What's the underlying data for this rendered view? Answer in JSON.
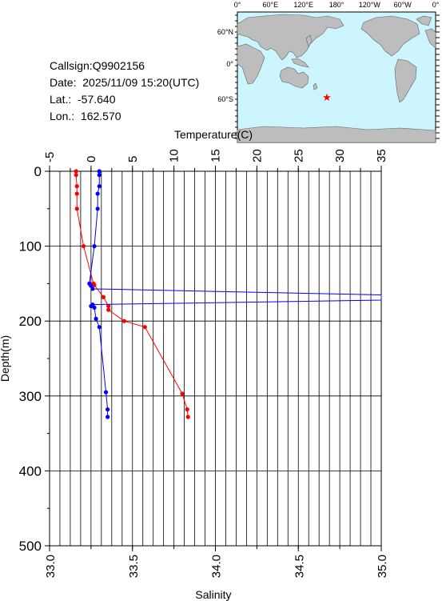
{
  "info": {
    "callsign": "Callsign:Q9902156",
    "date": "Date:  2025/11/09 15:20(UTC)",
    "lat": "Lat.:  -57.640",
    "lon": "Lon.:  162.570"
  },
  "map": {
    "top_labels": [
      "0°",
      "60°E",
      "120°E",
      "180°",
      "120°W",
      "60°W",
      "0°"
    ],
    "lat_labels": [
      "60°N",
      "0°",
      "60°S"
    ],
    "ocean_color": "#ccf5ff",
    "land_color": "#bdbdbd",
    "marker_color": "#ff0000",
    "marker_icon": "star-icon"
  },
  "chart_data": {
    "type": "line",
    "temperature_axis": {
      "label": "Temperature(C)",
      "min": -5,
      "max": 35,
      "ticks": [
        "-5",
        "0",
        "5",
        "10",
        "15",
        "20",
        "25",
        "30",
        "35"
      ]
    },
    "salinity_axis": {
      "label": "Salinity",
      "min": 33.0,
      "max": 35.0,
      "ticks": [
        "33.0",
        "33.5",
        "34.0",
        "34.5",
        "35.0"
      ]
    },
    "depth_axis": {
      "label": "Depth(m)",
      "min": 0,
      "max": 500,
      "ticks": [
        "0",
        "100",
        "200",
        "300",
        "400",
        "500"
      ]
    },
    "series": [
      {
        "kind": "temperature",
        "color": "#ff0000",
        "points": [
          {
            "depth": 0,
            "value": -1.8
          },
          {
            "depth": 5,
            "value": -1.8
          },
          {
            "depth": 20,
            "value": -1.7
          },
          {
            "depth": 30,
            "value": -1.7
          },
          {
            "depth": 50,
            "value": -1.7
          },
          {
            "depth": 100,
            "value": -0.9
          },
          {
            "depth": 150,
            "value": 0.3
          },
          {
            "depth": 152,
            "value": 0.4
          },
          {
            "depth": 168,
            "value": 1.5
          },
          {
            "depth": 180,
            "value": 2.1
          },
          {
            "depth": 185,
            "value": 2.1
          },
          {
            "depth": 200,
            "value": 4.0
          },
          {
            "depth": 208,
            "value": 6.5
          },
          {
            "depth": 297,
            "value": 11.0
          },
          {
            "depth": 318,
            "value": 11.6
          },
          {
            "depth": 328,
            "value": 11.7
          }
        ]
      },
      {
        "kind": "salinity",
        "color": "#0000ff",
        "points": [
          {
            "depth": 0,
            "value": 33.3
          },
          {
            "depth": 5,
            "value": 33.3
          },
          {
            "depth": 20,
            "value": 33.3
          },
          {
            "depth": 30,
            "value": 33.29
          },
          {
            "depth": 50,
            "value": 33.29
          },
          {
            "depth": 100,
            "value": 33.27
          },
          {
            "depth": 150,
            "value": 33.24
          },
          {
            "depth": 153,
            "value": 33.25
          },
          {
            "depth": 157,
            "value": 33.26
          },
          {
            "depth": 165,
            "value": 35.0
          },
          {
            "depth": 172,
            "value": 35.0
          },
          {
            "depth": 178,
            "value": 33.26
          },
          {
            "depth": 180,
            "value": 33.25
          },
          {
            "depth": 182,
            "value": 33.27
          },
          {
            "depth": 197,
            "value": 33.28
          },
          {
            "depth": 208,
            "value": 33.3
          },
          {
            "depth": 295,
            "value": 33.34
          },
          {
            "depth": 318,
            "value": 33.35
          },
          {
            "depth": 328,
            "value": 33.35
          }
        ]
      }
    ],
    "grid": true
  }
}
